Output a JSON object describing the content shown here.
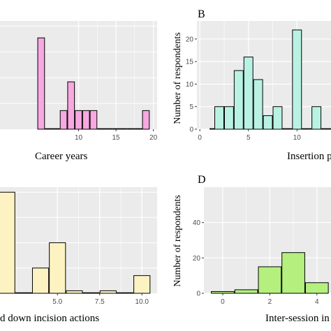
{
  "chart_data": [
    {
      "panel": "",
      "type": "bar",
      "xlabel": "Career years",
      "ylabel": "",
      "xlim": [
        -0.5,
        20.5
      ],
      "ylim": [
        0,
        3.2
      ],
      "x_ticks": [
        10,
        15,
        20
      ],
      "y_ticks": [],
      "fill": "#f7a8e0",
      "bins": [
        {
          "x": 5,
          "y": 2.7
        },
        {
          "x": 6,
          "y": 0
        },
        {
          "x": 7,
          "y": 0
        },
        {
          "x": 8,
          "y": 0.55
        },
        {
          "x": 9,
          "y": 1.4
        },
        {
          "x": 10,
          "y": 0.55
        },
        {
          "x": 11,
          "y": 0.55
        },
        {
          "x": 12,
          "y": 0.55
        },
        {
          "x": 13,
          "y": 0
        },
        {
          "x": 14,
          "y": 0
        },
        {
          "x": 15,
          "y": 0
        },
        {
          "x": 16,
          "y": 0
        },
        {
          "x": 17,
          "y": 0
        },
        {
          "x": 18,
          "y": 0
        },
        {
          "x": 19,
          "y": 0.55
        }
      ]
    },
    {
      "panel": "B",
      "type": "bar",
      "xlabel": "Insertion p",
      "ylabel": "Number of respondents",
      "xlim": [
        -0.3,
        13.5
      ],
      "ylim": [
        0,
        24
      ],
      "x_ticks": [
        0,
        5,
        10
      ],
      "y_ticks": [
        0,
        5,
        10,
        15,
        20
      ],
      "fill": "#b9f2e3",
      "bins": [
        {
          "x": 1.5,
          "y": 0
        },
        {
          "x": 2,
          "y": 5
        },
        {
          "x": 3,
          "y": 5
        },
        {
          "x": 4,
          "y": 13
        },
        {
          "x": 5,
          "y": 16
        },
        {
          "x": 6,
          "y": 11
        },
        {
          "x": 7,
          "y": 3
        },
        {
          "x": 8,
          "y": 5
        },
        {
          "x": 9,
          "y": 0
        },
        {
          "x": 10,
          "y": 22
        },
        {
          "x": 11,
          "y": 0
        },
        {
          "x": 12,
          "y": 5
        },
        {
          "x": 13,
          "y": 0
        }
      ]
    },
    {
      "panel": "",
      "type": "bar",
      "xlabel": "d down incision actions",
      "ylabel": "",
      "xlim": [
        1.6,
        10.9
      ],
      "ylim": [
        0,
        42
      ],
      "x_ticks": [
        5.0,
        7.5,
        10.0
      ],
      "x_tick_labels": [
        "5.0",
        "7.5",
        "10.0"
      ],
      "y_ticks": [],
      "fill": "#fdf3c2",
      "bins": [
        {
          "x": 2,
          "y": 40
        },
        {
          "x": 3,
          "y": 0
        },
        {
          "x": 4,
          "y": 10
        },
        {
          "x": 5,
          "y": 20
        },
        {
          "x": 6,
          "y": 1
        },
        {
          "x": 7,
          "y": 0
        },
        {
          "x": 8,
          "y": 1
        },
        {
          "x": 9,
          "y": 0
        },
        {
          "x": 10,
          "y": 7
        }
      ]
    },
    {
      "panel": "D",
      "type": "bar",
      "xlabel": "Inter-session in",
      "ylabel": "Number of respondents",
      "xlim": [
        -0.8,
        4.6
      ],
      "ylim": [
        0,
        60
      ],
      "x_ticks": [
        0,
        2,
        4
      ],
      "y_ticks": [
        0,
        20,
        40
      ],
      "fill": "#b5ef7e",
      "bins": [
        {
          "x": 0,
          "y": 1
        },
        {
          "x": 1,
          "y": 2
        },
        {
          "x": 2,
          "y": 15
        },
        {
          "x": 3,
          "y": 23
        },
        {
          "x": 4,
          "y": 6
        }
      ]
    }
  ],
  "colors": {
    "grid_bg": "#ebebeb",
    "grid_line": "#ffffff",
    "bar_stroke": "#000000"
  }
}
